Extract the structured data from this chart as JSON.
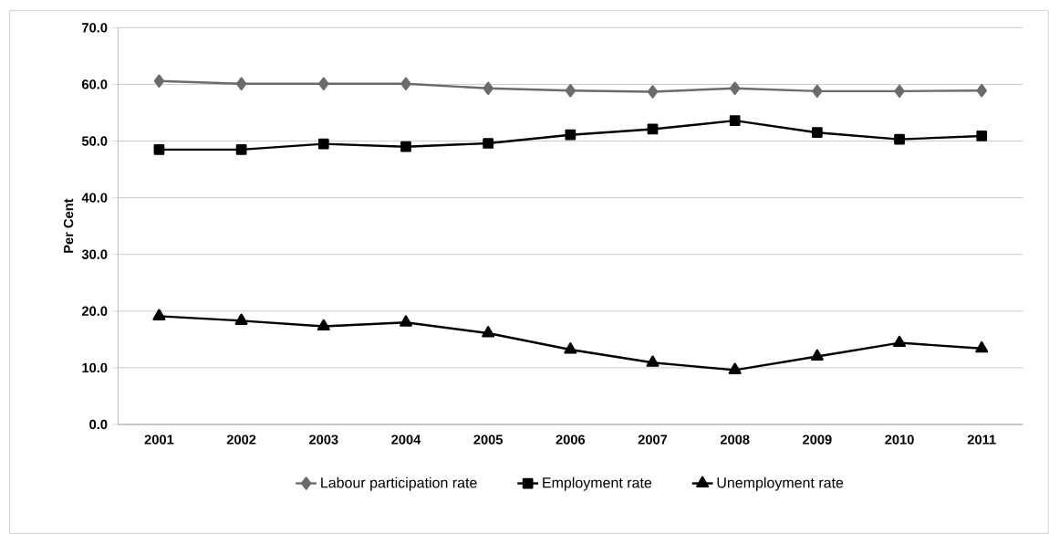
{
  "chart_data": {
    "type": "line",
    "ylabel": "Per Cent",
    "categories": [
      "2001",
      "2002",
      "2003",
      "2004",
      "2005",
      "2006",
      "2007",
      "2008",
      "2009",
      "2010",
      "2011"
    ],
    "series": [
      {
        "name": "Labour participation  rate",
        "color": "#6b6b6b",
        "marker": "diamond",
        "values": [
          60.6,
          60.1,
          60.1,
          60.1,
          59.3,
          58.9,
          58.7,
          59.3,
          58.8,
          58.8,
          58.9
        ]
      },
      {
        "name": "Employment rate",
        "color": "#000000",
        "marker": "square",
        "values": [
          48.5,
          48.5,
          49.5,
          49.0,
          49.6,
          51.1,
          52.1,
          53.6,
          51.5,
          50.3,
          50.9
        ]
      },
      {
        "name": "Unemployment rate",
        "color": "#000000",
        "marker": "triangle",
        "values": [
          19.1,
          18.3,
          17.3,
          18.0,
          16.1,
          13.2,
          10.9,
          9.6,
          12.0,
          14.4,
          13.4
        ]
      }
    ],
    "ylim": [
      0,
      70
    ],
    "yticks": [
      {
        "value": 0,
        "label": "0.0"
      },
      {
        "value": 10,
        "label": "10.0"
      },
      {
        "value": 20,
        "label": "20.0"
      },
      {
        "value": 30,
        "label": "30.0"
      },
      {
        "value": 40,
        "label": "40.0"
      },
      {
        "value": 50,
        "label": "50.0"
      },
      {
        "value": 60,
        "label": "60.0"
      },
      {
        "value": 70,
        "label": "70.0"
      }
    ],
    "grid": "y",
    "legend": "bottom",
    "line_style": "solid"
  }
}
